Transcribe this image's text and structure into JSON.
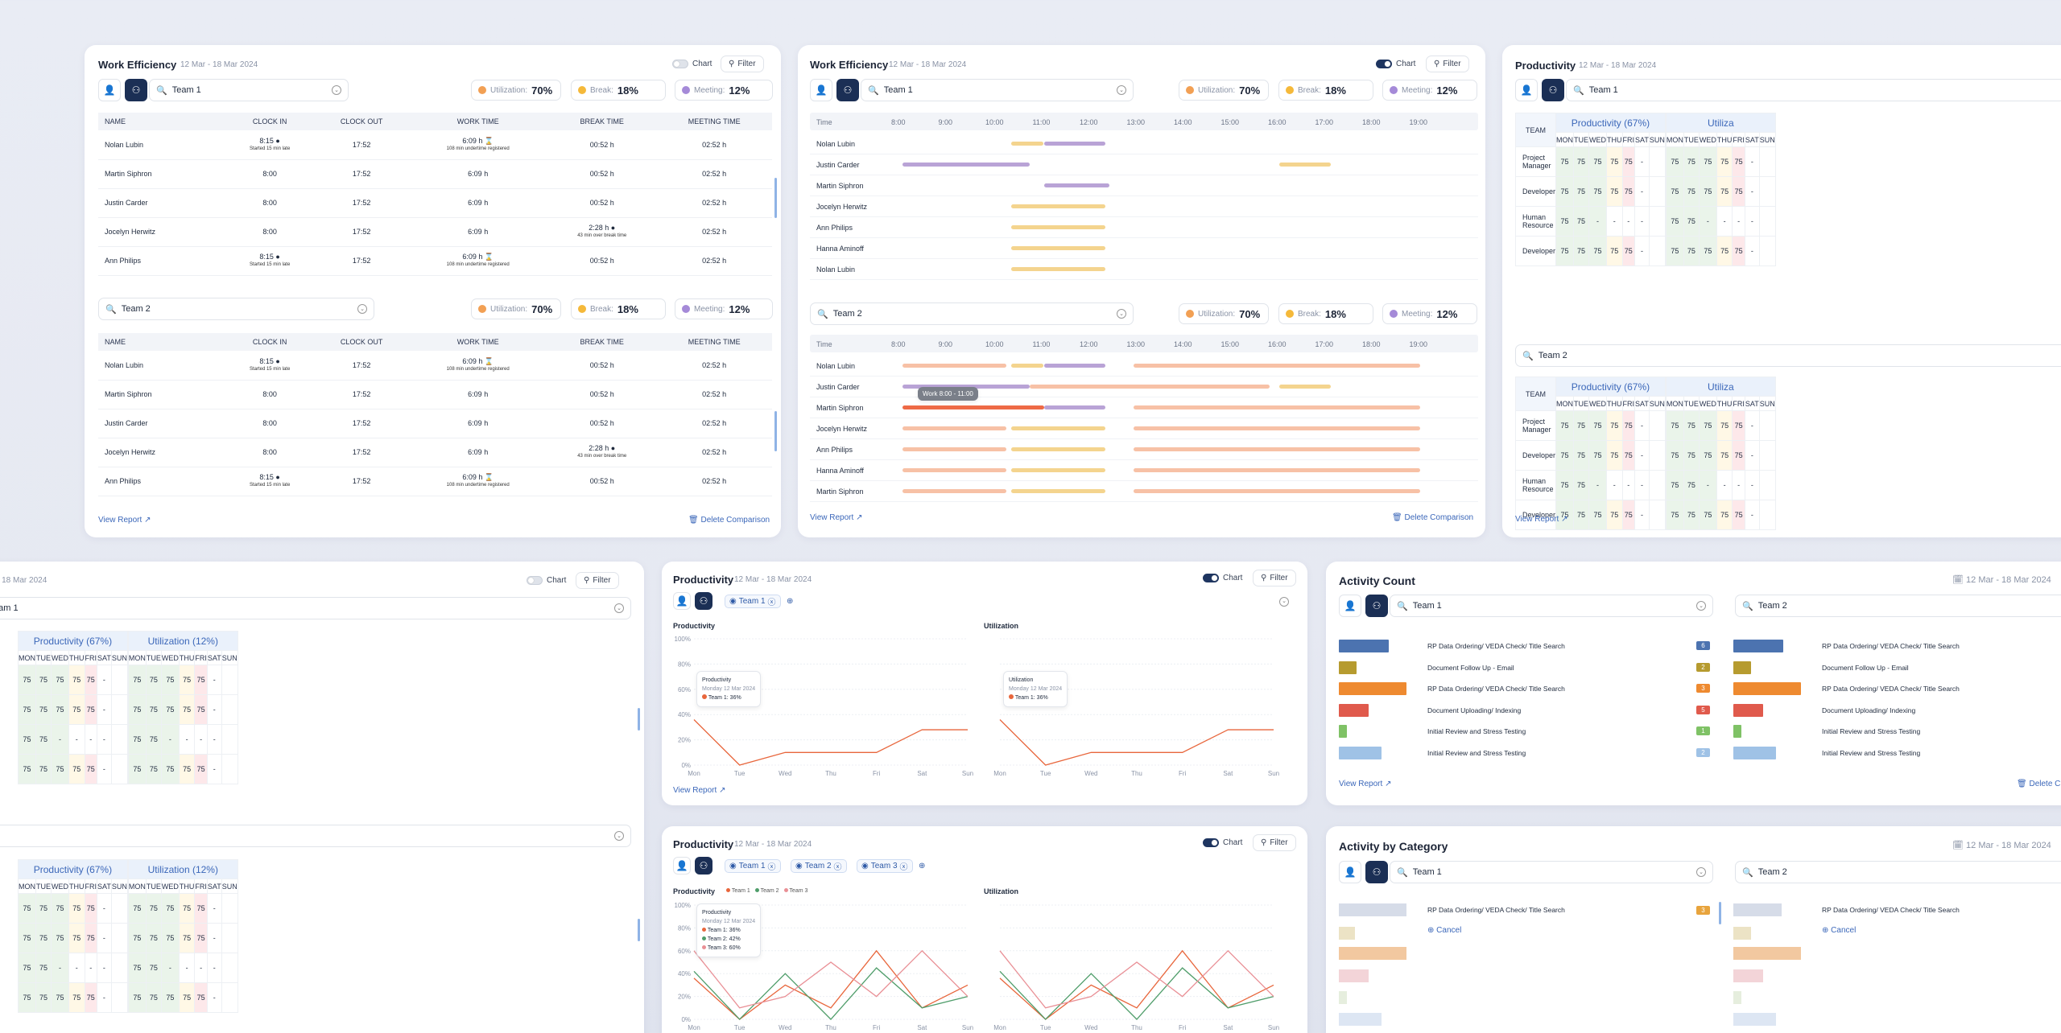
{
  "common": {
    "chart": "Chart",
    "filter": "Filter",
    "view_report": "View Report",
    "delete": "Delete Comparison",
    "date": "12 Mar - 18 Mar 2024",
    "team1": "Team 1",
    "team2": "Team 2",
    "team3": "Team 3",
    "util_label": "Utilization:",
    "util_val": "70%",
    "break_label": "Break:",
    "break_val": "18%",
    "meet_label": "Meeting:",
    "meet_val": "12%",
    "cancel": "Cancel",
    "delete_short": "Delete C"
  },
  "we1": {
    "title": "Work Efficiency",
    "cols": [
      "NAME",
      "CLOCK IN",
      "CLOCK OUT",
      "WORK TIME",
      "BREAK TIME",
      "MEETING TIME"
    ]
  },
  "names": [
    "Nolan Lubin",
    "Martin Siphron",
    "Justin Carder",
    "Jocelyn Herwitz",
    "Ann Philips"
  ],
  "we_vals": {
    "in": "8:00",
    "late": "8:15",
    "late_note": "Started 15 min late",
    "out": "17:52",
    "work": "6:09 h",
    "work_red": "6:09 h",
    "under": "108 min undertime registered",
    "brk": "00:52 h",
    "brk_over": "2:28 h",
    "over": "43 min over break time",
    "meet": "02:52 h"
  },
  "we2": {
    "title": "Work Efficiency",
    "time": "Time",
    "hours": [
      "8:00",
      "9:00",
      "10:00",
      "11:00",
      "12:00",
      "13:00",
      "14:00",
      "15:00",
      "16:00",
      "17:00",
      "18:00",
      "19:00"
    ],
    "team1_rows": [
      "Nolan Lubin",
      "Justin Carder",
      "Martin Siphron",
      "Jocelyn Herwitz",
      "Ann Philips",
      "Hanna Aminoff",
      "Nolan Lubin"
    ],
    "team2_rows": [
      "Nolan Lubin",
      "Justin Carder",
      "Martin Siphron",
      "Jocelyn Herwitz",
      "Ann Philips",
      "Hanna Aminoff",
      "Martin Siphron"
    ],
    "tooltip": "Work 8:00 - 11:00"
  },
  "prod": {
    "title": "Productivity",
    "team": "TEAM",
    "grp_prod": "Productivity (67%)",
    "grp_util": "Utilization (12%)",
    "grp_util_cut": "Utiliza",
    "days": [
      "MON",
      "TUE",
      "WED",
      "THU",
      "FRI",
      "SAT",
      "SUN"
    ],
    "roles": [
      "Project Manager",
      "Developer",
      "Human Resource",
      "Developer"
    ],
    "v": "75",
    "dash": "-"
  },
  "prod2": {
    "title": "Productivity",
    "yt": [
      "100%",
      "80%",
      "60%",
      "40%",
      "20%",
      "0%"
    ],
    "xt": [
      "Mon",
      "Tue",
      "Wed",
      "Thu",
      "Fri",
      "Sat",
      "Sun"
    ],
    "lp": "Productivity",
    "lu": "Utilization",
    "tip_title": "Productivity",
    "tip_date": "Monday 12 Mar 2024",
    "tip_t1": "Team 1: 36%",
    "tip_util": "Utilization",
    "tip_t2": "Team 2: 42%",
    "tip_t3": "Team 3: 60%",
    "legend": [
      "Team 1",
      "Team 2",
      "Team 3"
    ]
  },
  "act": {
    "title": "Activity Count",
    "title2": "Activity by Category",
    "items": [
      "RP Data Ordering/ VEDA Check/ Title Search",
      "Document Follow Up - Email",
      "RP Data Ordering/ VEDA Check/ Title Search",
      "Document Uploading/ Indexing",
      "Initial Review and Stress Testing",
      "Initial Review and Stress Testing"
    ],
    "counts": [
      "6",
      "2",
      "3",
      "5",
      "1",
      "2"
    ],
    "bold_count": "3"
  },
  "bl": {
    "date": "- 18 Mar 2024",
    "team": "eam 1"
  }
}
